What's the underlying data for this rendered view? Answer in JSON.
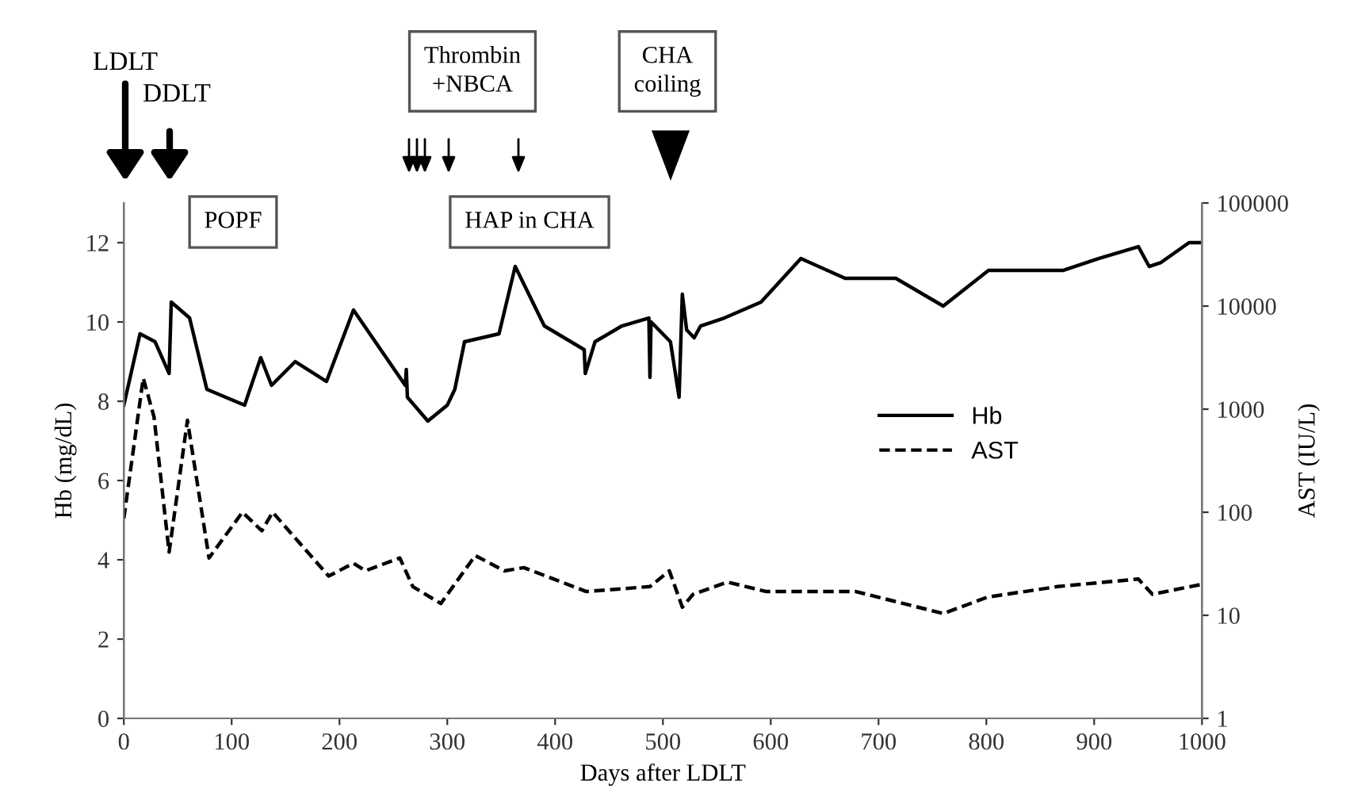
{
  "chart_data": {
    "type": "line",
    "xlabel": "Days after LDLT",
    "ylabel": "Hb (mg/dL)",
    "y2label": "AST (IU/L)",
    "xlim": [
      0,
      1000
    ],
    "xticks": [
      0,
      100,
      200,
      300,
      400,
      500,
      600,
      700,
      800,
      900,
      1000
    ],
    "ylim": [
      0,
      13
    ],
    "yticks": [
      0,
      2,
      4,
      6,
      8,
      10,
      12
    ],
    "y2lim": [
      1,
      100000
    ],
    "y2ticks": [
      1,
      10,
      100,
      1000,
      10000,
      100000
    ],
    "log": "y2",
    "grid": false,
    "legend": "right",
    "marker": "none",
    "series": [
      {
        "name": "Hb",
        "color": "#000000",
        "line_style": "solid",
        "x": [
          0,
          15,
          29,
          42,
          44,
          61,
          77,
          112,
          127,
          137,
          159,
          188,
          213,
          261,
          262,
          263,
          282,
          300,
          307,
          316,
          348,
          363,
          390,
          427,
          428,
          437,
          462,
          487,
          488,
          489,
          507,
          515,
          518,
          522,
          529,
          535,
          557,
          591,
          628,
          669,
          716,
          760,
          802,
          871,
          904,
          941,
          951,
          962,
          988,
          1000
        ],
        "values": [
          7.9,
          9.7,
          9.5,
          8.7,
          10.5,
          10.1,
          8.3,
          7.9,
          9.1,
          8.4,
          9.0,
          8.5,
          10.3,
          8.4,
          8.8,
          8.1,
          7.5,
          7.9,
          8.3,
          9.5,
          9.7,
          11.4,
          9.9,
          9.3,
          8.7,
          9.5,
          9.9,
          10.1,
          8.6,
          10.0,
          9.5,
          8.1,
          10.7,
          9.8,
          9.6,
          9.9,
          10.1,
          10.5,
          11.6,
          11.1,
          11.1,
          10.4,
          11.3,
          11.3,
          11.6,
          11.9,
          11.4,
          11.5,
          12.0,
          12.0
        ]
      },
      {
        "name": "AST",
        "color": "#000000",
        "line_style": "dashed",
        "axis": "y2",
        "x": [
          0,
          18,
          28,
          42,
          59,
          79,
          110,
          128,
          138,
          190,
          213,
          224,
          256,
          268,
          294,
          326,
          353,
          371,
          429,
          488,
          506,
          518,
          528,
          560,
          596,
          679,
          760,
          801,
          866,
          941,
          954,
          1000
        ],
        "values": [
          87,
          2000,
          840,
          41,
          780,
          36,
          100,
          66,
          100,
          24,
          32,
          27,
          36,
          19,
          13,
          38,
          27,
          29,
          17,
          19,
          27,
          12,
          16,
          21,
          17,
          17,
          10.4,
          15,
          19,
          22.5,
          16,
          20
        ]
      }
    ],
    "annotations": [
      "LDLT",
      "DDLT",
      "POPF",
      "HAP in CHA",
      "Thrombin\n+NBCA",
      "CHA\ncoiling"
    ]
  }
}
